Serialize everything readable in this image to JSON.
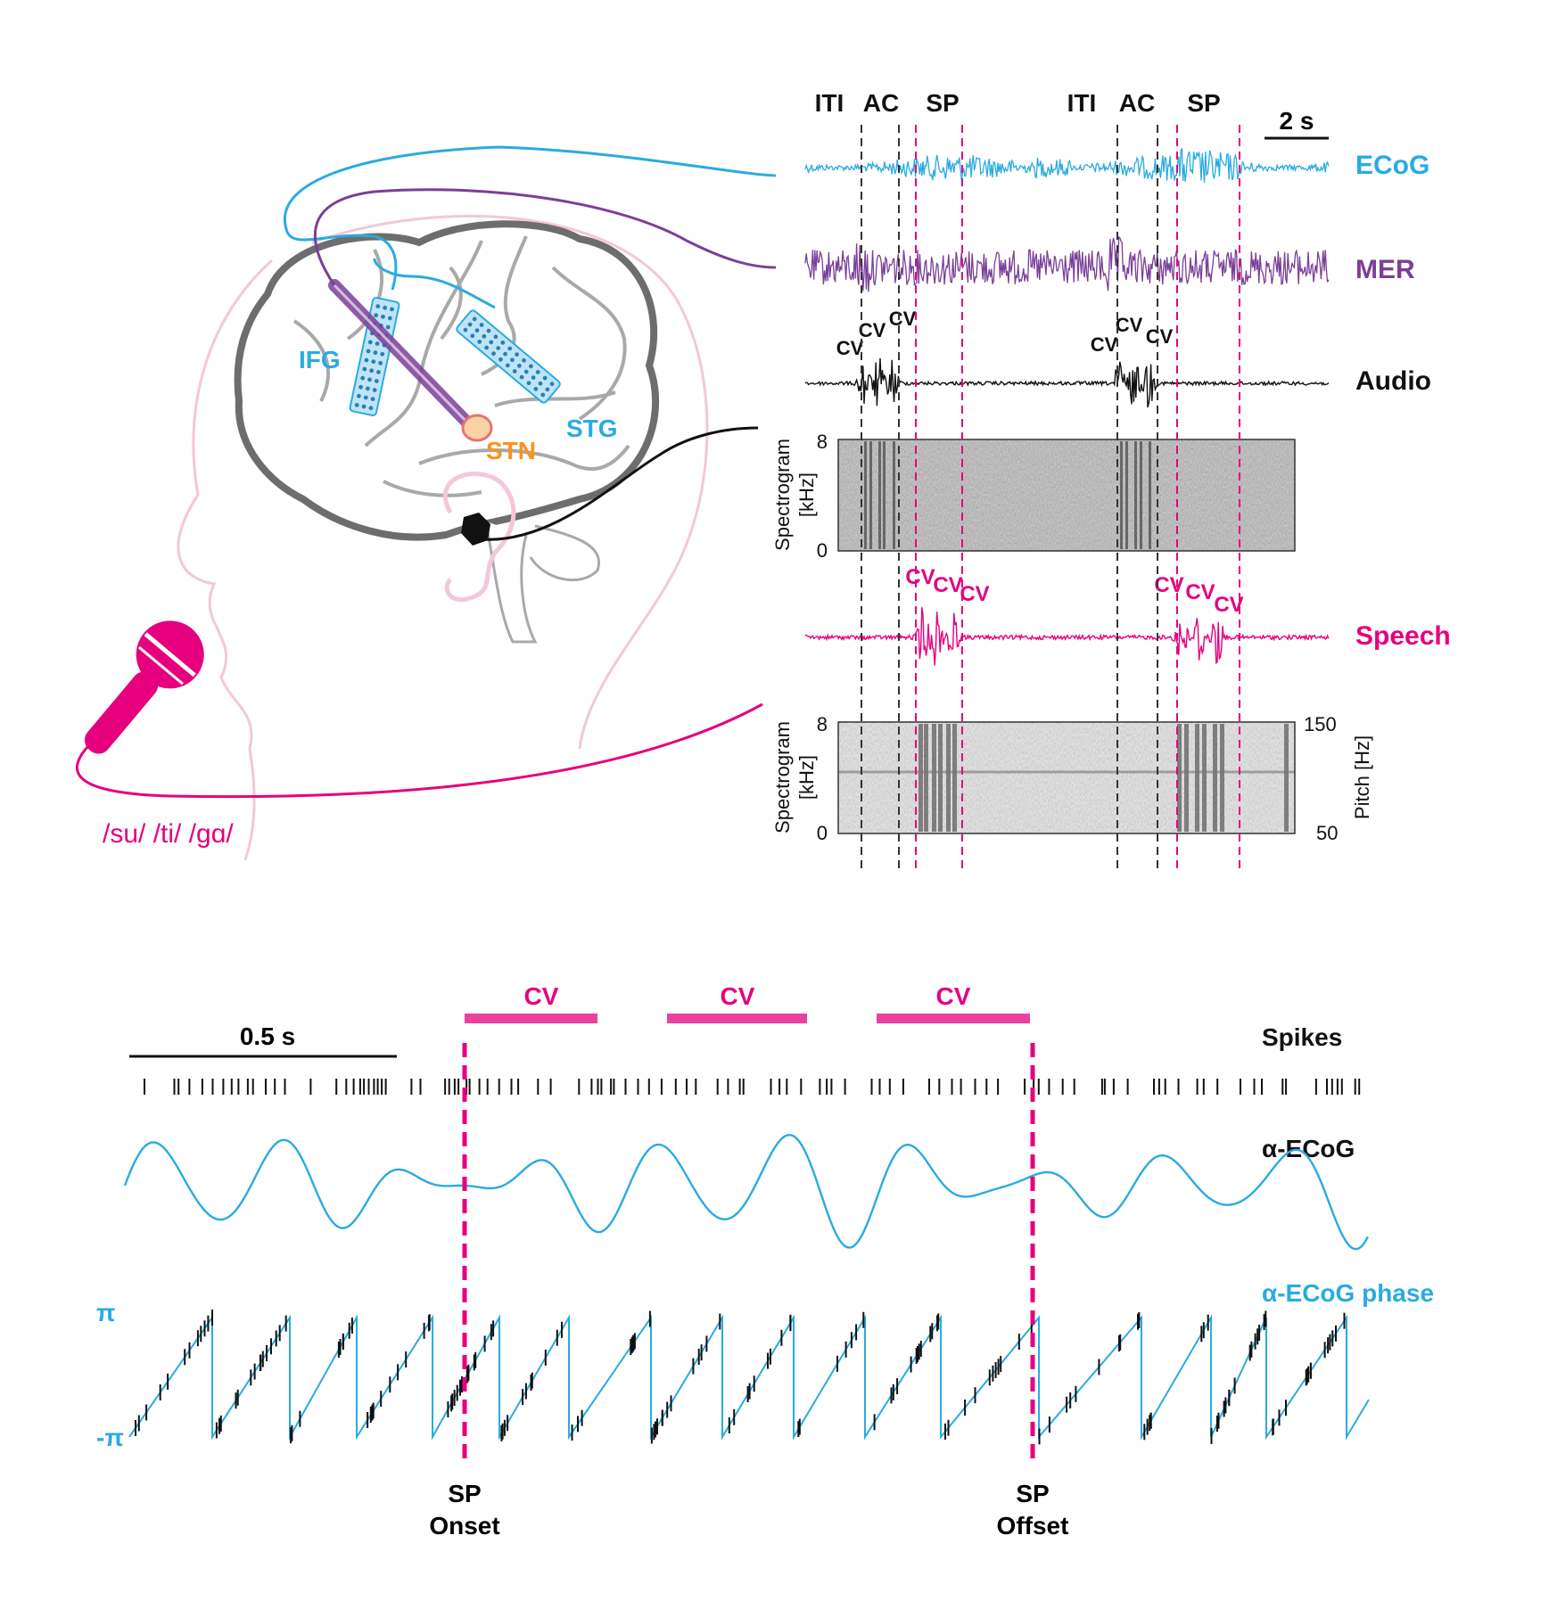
{
  "colors": {
    "ecog": "#29abe2",
    "mer": "#7b3f98",
    "audio": "#111111",
    "speech": "#e6007e",
    "stn": "#f7941d",
    "head": "#f4c6dc",
    "brain": "#6d6d6d",
    "gyri": "#a9a9a9"
  },
  "brain": {
    "labels": {
      "ifg": "IFG",
      "stn": "STN",
      "stg": "STG"
    },
    "syllables": "/su/ /ti/ /gɑ/"
  },
  "top": {
    "phases": [
      "ITI",
      "AC",
      "SP",
      "ITI",
      "AC",
      "SP"
    ],
    "scale_bar": "2 s",
    "traces": {
      "ecog": "ECoG",
      "mer": "MER",
      "audio": "Audio",
      "speech": "Speech"
    },
    "cv_label": "CV",
    "spec1": {
      "ylabel": "Spectrogram",
      "yunit": "[kHz]",
      "ymax": "8",
      "ymin": "0"
    },
    "spec2": {
      "ylabel": "Spectrogram",
      "yunit": "[kHz]",
      "ymax": "8",
      "ymin": "0",
      "rlabel": "Pitch [Hz]",
      "rmax": "150",
      "rmin": "50"
    }
  },
  "bottom": {
    "scale_bar": "0.5 s",
    "cv_label": "CV",
    "spikes": "Spikes",
    "alpha": "α-ECoG",
    "phase": "α-ECoG phase",
    "pi": "π",
    "neg_pi": "-π",
    "onset": [
      "SP",
      "Onset"
    ],
    "offset": [
      "SP",
      "Offset"
    ]
  }
}
